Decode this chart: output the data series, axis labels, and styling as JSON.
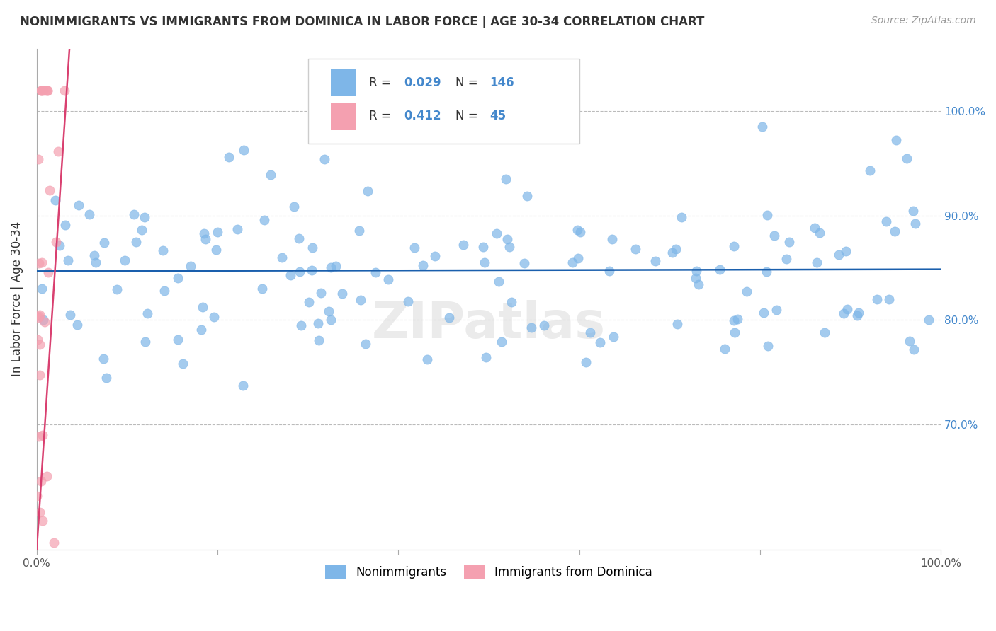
{
  "title": "NONIMMIGRANTS VS IMMIGRANTS FROM DOMINICA IN LABOR FORCE | AGE 30-34 CORRELATION CHART",
  "source": "Source: ZipAtlas.com",
  "ylabel": "In Labor Force | Age 30-34",
  "xlim": [
    0.0,
    1.0
  ],
  "ylim": [
    0.58,
    1.06
  ],
  "yticks": [
    0.7,
    0.8,
    0.9,
    1.0
  ],
  "ytick_labels": [
    "70.0%",
    "80.0%",
    "90.0%",
    "100.0%"
  ],
  "xticks": [
    0.0,
    0.2,
    0.4,
    0.6,
    0.8,
    1.0
  ],
  "xtick_labels": [
    "0.0%",
    "",
    "",
    "",
    "",
    "100.0%"
  ],
  "blue_color": "#7EB6E8",
  "pink_color": "#F4A0B0",
  "blue_line_color": "#1A5FAD",
  "pink_line_color": "#D94070",
  "blue_R": 0.029,
  "blue_N": 146,
  "pink_R": 0.412,
  "pink_N": 45,
  "legend_label_blue": "Nonimmigrants",
  "legend_label_pink": "Immigrants from Dominica",
  "watermark": "ZIPatlas",
  "background_color": "#ffffff",
  "grid_color": "#bbbbbb",
  "seed_blue": 42,
  "seed_pink": 7
}
